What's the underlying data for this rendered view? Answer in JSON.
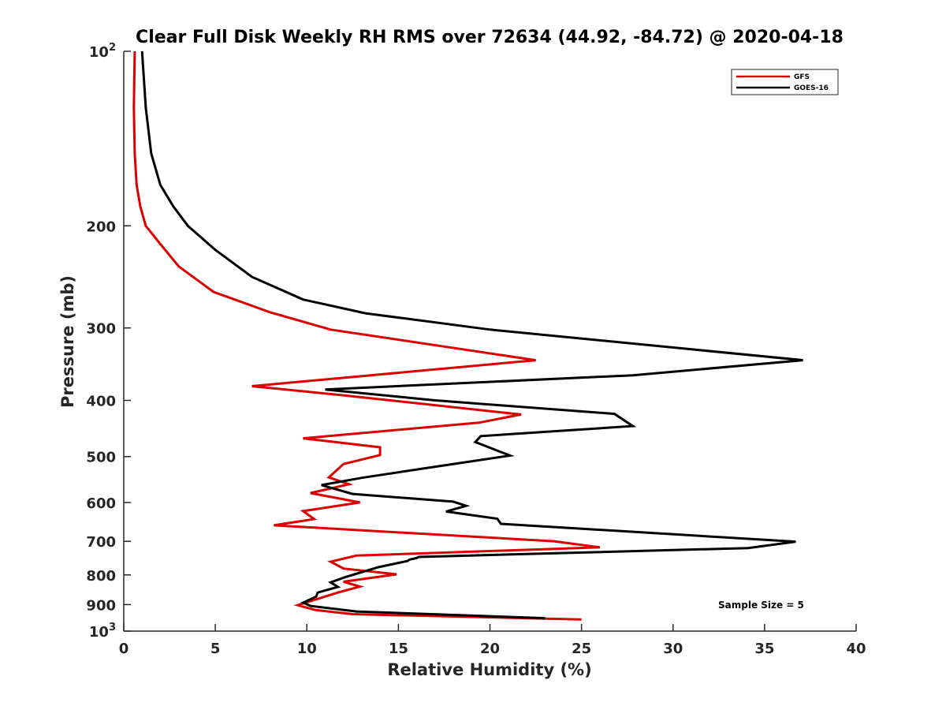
{
  "chart_data": {
    "type": "line",
    "title": "Clear Full Disk Weekly RH RMS over 72634 (44.92, -84.72) @ 2020-04-18",
    "xlabel": "Relative Humidity (%)",
    "ylabel": "Pressure (mb)",
    "xlim": [
      0,
      40
    ],
    "ylim": [
      100,
      1000
    ],
    "yscale": "log",
    "yreversed": true,
    "x_ticks": [
      0,
      5,
      10,
      15,
      20,
      25,
      30,
      35,
      40
    ],
    "x_tick_labels": [
      "0",
      "5",
      "10",
      "15",
      "20",
      "25",
      "30",
      "35",
      "40"
    ],
    "y_ticks": [
      100,
      200,
      300,
      400,
      500,
      600,
      700,
      800,
      900,
      1000
    ],
    "y_tick_labels": [
      {
        "base": "10",
        "exp": "2"
      },
      {
        "base": "200",
        "exp": ""
      },
      {
        "base": "300",
        "exp": ""
      },
      {
        "base": "400",
        "exp": ""
      },
      {
        "base": "500",
        "exp": ""
      },
      {
        "base": "600",
        "exp": ""
      },
      {
        "base": "700",
        "exp": ""
      },
      {
        "base": "800",
        "exp": ""
      },
      {
        "base": "900",
        "exp": ""
      },
      {
        "base": "10",
        "exp": "3"
      }
    ],
    "legend_position": "top-right",
    "annotation": "Sample Size = 5",
    "series": [
      {
        "name": "GFS",
        "color": "#dd0000",
        "points": [
          [
            0.6,
            100
          ],
          [
            0.55,
            125
          ],
          [
            0.6,
            150
          ],
          [
            0.7,
            170
          ],
          [
            0.9,
            185
          ],
          [
            1.2,
            200
          ],
          [
            2.0,
            215
          ],
          [
            3.0,
            235
          ],
          [
            4.9,
            260
          ],
          [
            8.0,
            282
          ],
          [
            11.3,
            302
          ],
          [
            22.5,
            341
          ],
          [
            13.5,
            362
          ],
          [
            7.0,
            378
          ],
          [
            12.0,
            392
          ],
          [
            21.7,
            423
          ],
          [
            19.4,
            437
          ],
          [
            9.8,
            465
          ],
          [
            14.0,
            482
          ],
          [
            14.0,
            497
          ],
          [
            12.0,
            515
          ],
          [
            11.2,
            543
          ],
          [
            12.3,
            558
          ],
          [
            10.2,
            578
          ],
          [
            12.9,
            600
          ],
          [
            9.8,
            621
          ],
          [
            10.4,
            641
          ],
          [
            8.2,
            657
          ],
          [
            23.5,
            700
          ],
          [
            26.0,
            717
          ],
          [
            12.7,
            741
          ],
          [
            11.3,
            759
          ],
          [
            12.0,
            780
          ],
          [
            14.9,
            798
          ],
          [
            12.0,
            822
          ],
          [
            12.9,
            838
          ],
          [
            11.7,
            858
          ],
          [
            9.5,
            902
          ],
          [
            10.5,
            920
          ],
          [
            12.5,
            935
          ],
          [
            25.0,
            955
          ]
        ]
      },
      {
        "name": "GOES-16",
        "color": "#000000",
        "points": [
          [
            1.0,
            100
          ],
          [
            1.2,
            125
          ],
          [
            1.5,
            150
          ],
          [
            2.0,
            170
          ],
          [
            2.7,
            185
          ],
          [
            3.5,
            200
          ],
          [
            5.0,
            220
          ],
          [
            7.0,
            245
          ],
          [
            9.8,
            268
          ],
          [
            13.2,
            283
          ],
          [
            20.0,
            302
          ],
          [
            37.1,
            341
          ],
          [
            27.8,
            362
          ],
          [
            11.0,
            383
          ],
          [
            17.0,
            400
          ],
          [
            26.8,
            422
          ],
          [
            27.8,
            443
          ],
          [
            19.5,
            461
          ],
          [
            19.2,
            472
          ],
          [
            21.1,
            498
          ],
          [
            17.3,
            519
          ],
          [
            13.0,
            544
          ],
          [
            10.8,
            560
          ],
          [
            12.5,
            580
          ],
          [
            18.0,
            598
          ],
          [
            18.7,
            608
          ],
          [
            17.6,
            622
          ],
          [
            20.4,
            640
          ],
          [
            20.6,
            653
          ],
          [
            36.7,
            701
          ],
          [
            34.1,
            719
          ],
          [
            16.1,
            745
          ],
          [
            16.0,
            748
          ],
          [
            15.6,
            753
          ],
          [
            15.5,
            757
          ],
          [
            13.9,
            776
          ],
          [
            12.1,
            807
          ],
          [
            11.3,
            824
          ],
          [
            11.7,
            839
          ],
          [
            10.6,
            858
          ],
          [
            10.5,
            872
          ],
          [
            9.8,
            893
          ],
          [
            10.2,
            905
          ],
          [
            12.7,
            925
          ],
          [
            23.0,
            950
          ]
        ]
      }
    ]
  }
}
